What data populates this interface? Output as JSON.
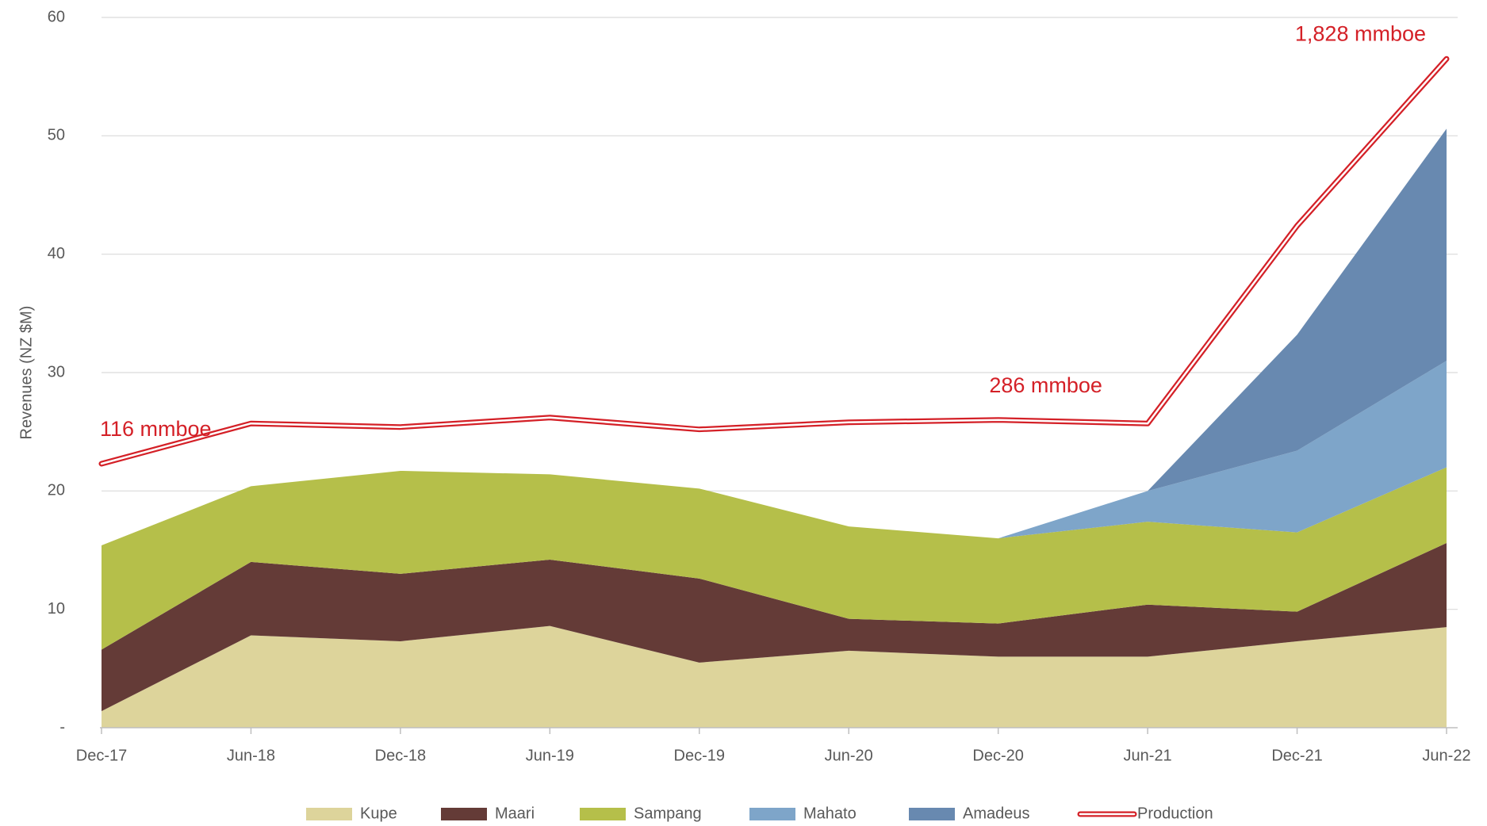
{
  "chart_data": {
    "type": "stacked_area",
    "y_label": "Revenues (NZ $M)",
    "categories": [
      "Dec-17",
      "Jun-18",
      "Dec-18",
      "Jun-19",
      "Dec-19",
      "Jun-20",
      "Dec-20",
      "Jun-21",
      "Dec-21",
      "Jun-22"
    ],
    "series": [
      {
        "name": "Kupe",
        "color": "#ddd49b",
        "values": [
          1.4,
          7.8,
          7.3,
          8.6,
          5.5,
          6.5,
          6.0,
          6.0,
          7.3,
          8.5
        ]
      },
      {
        "name": "Maari",
        "color": "#643b37",
        "values": [
          5.2,
          6.2,
          5.7,
          5.6,
          7.1,
          2.7,
          2.8,
          4.4,
          2.5,
          7.1
        ]
      },
      {
        "name": "Sampang",
        "color": "#b5bf4a",
        "values": [
          8.8,
          6.4,
          8.7,
          7.2,
          7.6,
          7.8,
          7.2,
          7.0,
          6.7,
          6.4
        ]
      },
      {
        "name": "Mahato",
        "color": "#7ea5c9",
        "values": [
          null,
          null,
          null,
          null,
          null,
          null,
          0,
          2.6,
          6.9,
          9.0
        ]
      },
      {
        "name": "Amadeus",
        "color": "#6889b0",
        "values": [
          null,
          null,
          null,
          null,
          null,
          null,
          0,
          0,
          9.8,
          19.6
        ]
      },
      {
        "name": "Production",
        "type": "line",
        "color": "#d42027",
        "values": [
          22.3,
          25.7,
          25.4,
          26.2,
          25.2,
          25.8,
          26.0,
          25.7,
          42.4,
          56.5
        ]
      }
    ],
    "annotations": [
      {
        "text": "116 mmboe",
        "index": 0
      },
      {
        "text": "286 mmboe",
        "index": 6
      },
      {
        "text": "1,828 mmboe",
        "index": 9
      }
    ],
    "ylim": [
      0,
      60
    ],
    "yticks": [
      {
        "value": 0,
        "label": "-"
      },
      10,
      20,
      30,
      40,
      50,
      60
    ],
    "grid": true,
    "legend": "bottom"
  }
}
